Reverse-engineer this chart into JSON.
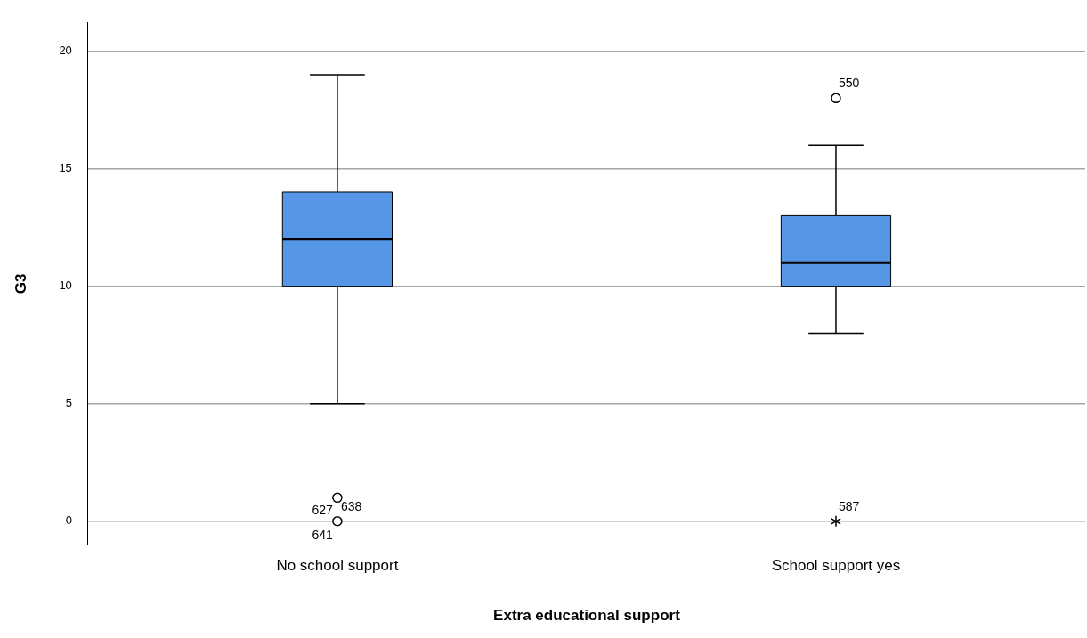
{
  "chart_data": {
    "type": "box",
    "xlabel": "Extra educational support",
    "ylabel": "G3",
    "categories": [
      "No school support",
      "School support yes"
    ],
    "series": [
      {
        "color": "#5596e6",
        "boxes": [
          {
            "low": 5,
            "q1": 10,
            "median": 12,
            "q3": 14,
            "high": 19
          },
          {
            "low": 8,
            "q1": 10,
            "median": 11,
            "q3": 13,
            "high": 16
          }
        ]
      },
      {
        "type": "scatter",
        "marker": "circle",
        "color": "#000000",
        "x": [
          "No school support",
          "No school support",
          "School support yes"
        ],
        "values": [
          1,
          0,
          18
        ]
      },
      {
        "type": "scatter",
        "marker": "cross",
        "color": "#000000",
        "x": [
          "School support yes"
        ],
        "values": [
          0
        ]
      }
    ],
    "ylim": [
      -1,
      21.2
    ],
    "yticks": [
      0,
      5,
      10,
      15,
      20
    ],
    "grid": "y",
    "legend": false,
    "annotations": [
      {
        "text": "638",
        "x": "No school support",
        "y": 1
      },
      {
        "text": "627",
        "x": "No school support",
        "y": 1
      },
      {
        "text": "641",
        "x": "No school support",
        "y": 0
      },
      {
        "text": "550",
        "x": "School support yes",
        "y": 18
      },
      {
        "text": "587",
        "x": "School support yes",
        "y": 0
      }
    ]
  }
}
